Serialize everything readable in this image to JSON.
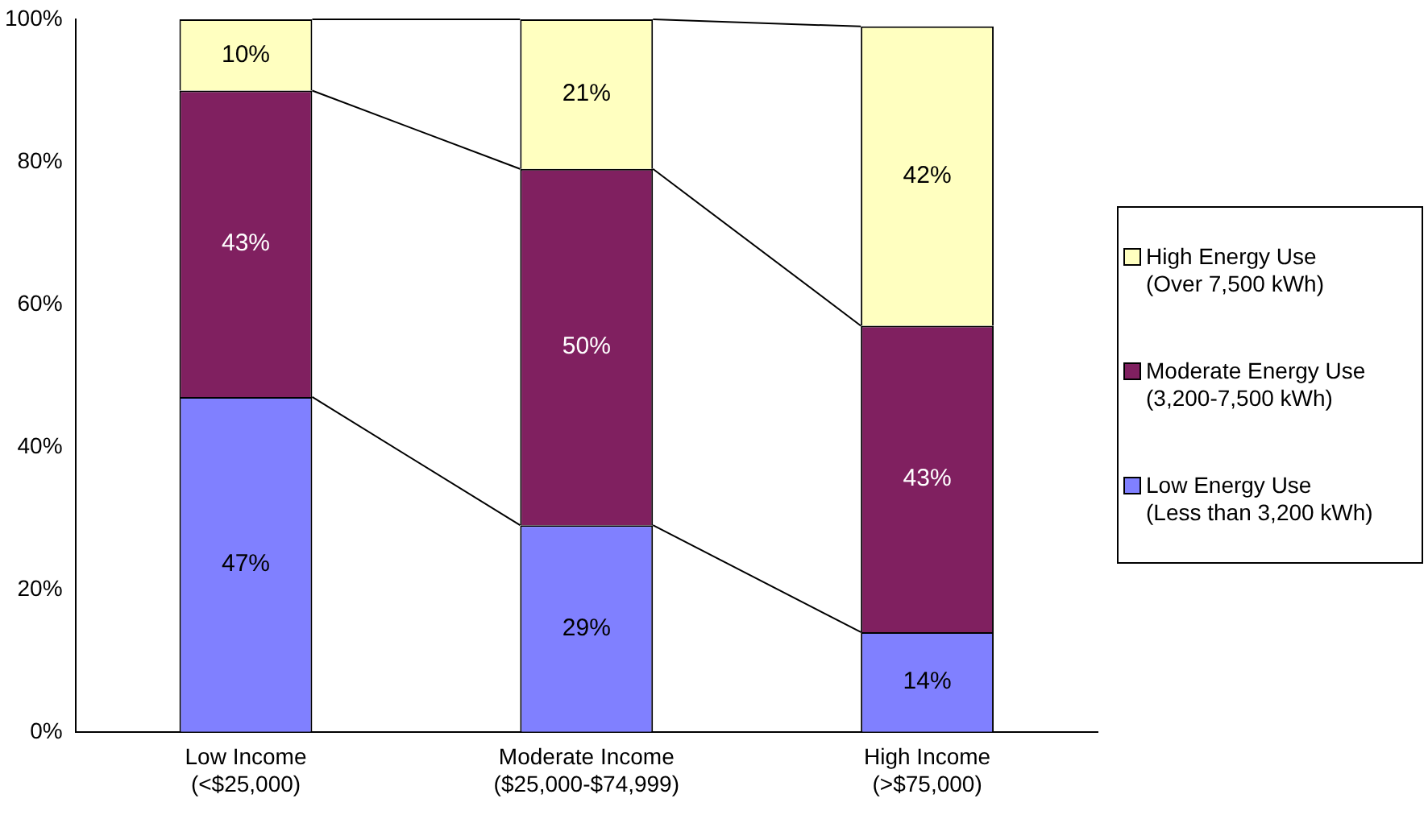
{
  "chart_data": {
    "type": "bar",
    "stacked": true,
    "categories": [
      "Low Income\n(<$25,000)",
      "Moderate Income\n($25,000-$74,999)",
      "High Income\n(>$75,000)"
    ],
    "series": [
      {
        "name": "Low Energy Use\n(Less than 3,200 kWh)",
        "color": "#8080ff",
        "values": [
          47,
          29,
          14
        ]
      },
      {
        "name": "Moderate Energy Use\n(3,200-7,500 kWh)",
        "color": "#802060",
        "values": [
          43,
          50,
          43
        ]
      },
      {
        "name": "High Energy Use\n(Over 7,500 kWh)",
        "color": "#ffffc0",
        "values": [
          10,
          21,
          42
        ]
      }
    ],
    "ylim": [
      0,
      100
    ],
    "yticks": [
      {
        "value": 0,
        "label": "0%"
      },
      {
        "value": 20,
        "label": "20%"
      },
      {
        "value": 40,
        "label": "40%"
      },
      {
        "value": 60,
        "label": "60%"
      },
      {
        "value": 80,
        "label": "80%"
      },
      {
        "value": 100,
        "label": "100%"
      }
    ],
    "value_labels": [
      [
        "47%",
        "29%",
        "14%"
      ],
      [
        "43%",
        "50%",
        "43%"
      ],
      [
        "10%",
        "21%",
        "42%"
      ]
    ],
    "grid": false,
    "legend": "right"
  }
}
